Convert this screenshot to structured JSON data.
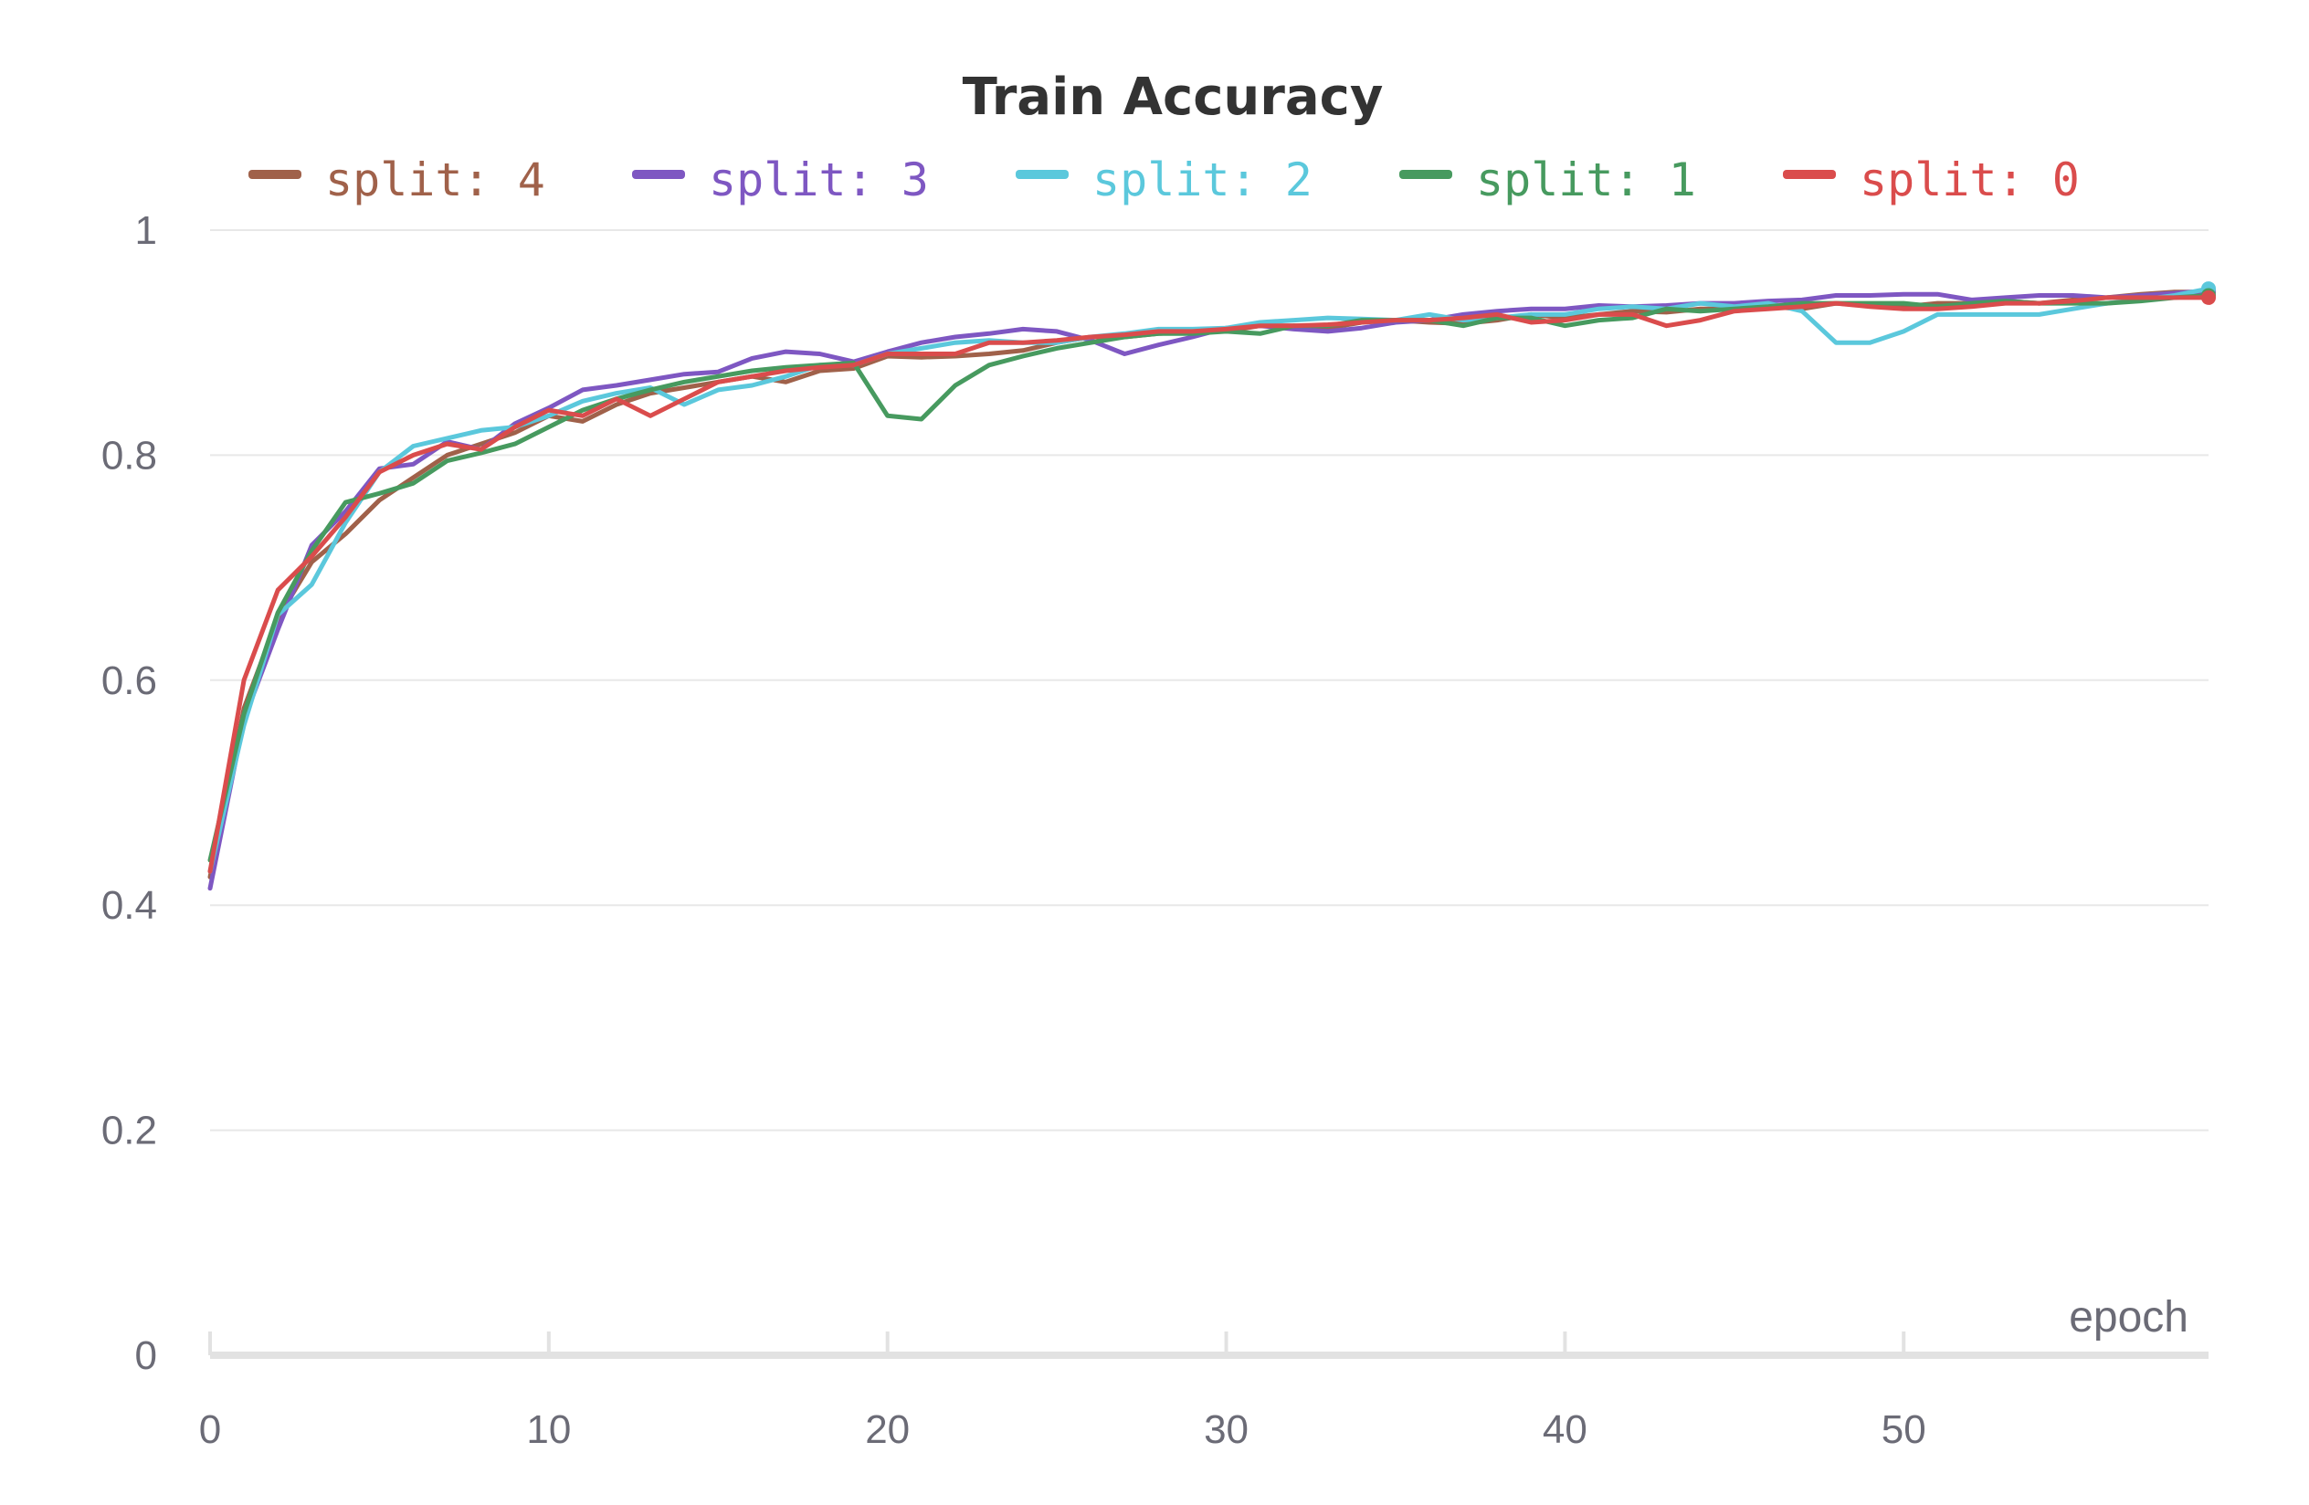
{
  "chart_data": {
    "type": "line",
    "title": "Train Accuracy",
    "xlabel": "epoch",
    "ylabel": "",
    "xlim": [
      0,
      59
    ],
    "ylim": [
      0,
      1
    ],
    "x_ticks": [
      "0",
      "10",
      "20",
      "30",
      "40",
      "50"
    ],
    "x_tick_values": [
      0,
      10,
      20,
      30,
      40,
      50
    ],
    "y_ticks": [
      "0",
      "0.2",
      "0.4",
      "0.6",
      "0.8",
      "1"
    ],
    "y_tick_values": [
      0,
      0.2,
      0.4,
      0.6,
      0.8,
      1
    ],
    "grid": true,
    "legend_position": "top",
    "series": [
      {
        "name": "split: 4",
        "color": "#a0614a",
        "x": [
          0,
          1,
          2,
          3,
          4,
          5,
          6,
          7,
          8,
          9,
          10,
          11,
          12,
          13,
          14,
          15,
          16,
          17,
          18,
          19,
          20,
          21,
          22,
          23,
          24,
          25,
          26,
          27,
          28,
          29,
          30,
          31,
          32,
          33,
          34,
          35,
          36,
          37,
          38,
          39,
          40,
          41,
          42,
          43,
          44,
          45,
          46,
          47,
          48,
          49,
          50,
          51,
          52,
          53,
          54,
          55,
          56,
          57,
          58,
          59
        ],
        "values": [
          0.425,
          0.575,
          0.655,
          0.705,
          0.73,
          0.76,
          0.78,
          0.8,
          0.81,
          0.82,
          0.835,
          0.83,
          0.845,
          0.855,
          0.86,
          0.865,
          0.87,
          0.865,
          0.875,
          0.877,
          0.888,
          0.887,
          0.888,
          0.89,
          0.893,
          0.9,
          0.905,
          0.905,
          0.908,
          0.91,
          0.91,
          0.915,
          0.915,
          0.913,
          0.918,
          0.92,
          0.918,
          0.917,
          0.92,
          0.925,
          0.922,
          0.925,
          0.928,
          0.927,
          0.93,
          0.93,
          0.932,
          0.93,
          0.935,
          0.933,
          0.932,
          0.935,
          0.935,
          0.937,
          0.935,
          0.938,
          0.94,
          0.943,
          0.945,
          0.945
        ]
      },
      {
        "name": "split: 3",
        "color": "#7e57c2",
        "x": [
          0,
          1,
          2,
          3,
          4,
          5,
          6,
          7,
          8,
          9,
          10,
          11,
          12,
          13,
          14,
          15,
          16,
          17,
          18,
          19,
          20,
          21,
          22,
          23,
          24,
          25,
          26,
          27,
          28,
          29,
          30,
          31,
          32,
          33,
          34,
          35,
          36,
          37,
          38,
          39,
          40,
          41,
          42,
          43,
          44,
          45,
          46,
          47,
          48,
          49,
          50,
          51,
          52,
          53,
          54,
          55,
          56,
          57,
          58,
          59
        ],
        "values": [
          0.415,
          0.565,
          0.645,
          0.72,
          0.75,
          0.788,
          0.792,
          0.812,
          0.805,
          0.828,
          0.842,
          0.858,
          0.862,
          0.867,
          0.872,
          0.874,
          0.886,
          0.892,
          0.89,
          0.883,
          0.892,
          0.9,
          0.905,
          0.908,
          0.912,
          0.91,
          0.902,
          0.89,
          0.898,
          0.905,
          0.913,
          0.915,
          0.912,
          0.91,
          0.913,
          0.918,
          0.92,
          0.925,
          0.928,
          0.93,
          0.93,
          0.933,
          0.932,
          0.933,
          0.935,
          0.935,
          0.937,
          0.938,
          0.942,
          0.942,
          0.943,
          0.943,
          0.938,
          0.94,
          0.942,
          0.942,
          0.94,
          0.942,
          0.944,
          0.946
        ]
      },
      {
        "name": "split: 2",
        "color": "#5bc8dc",
        "x": [
          0,
          1,
          2,
          3,
          4,
          5,
          6,
          7,
          8,
          9,
          10,
          11,
          12,
          13,
          14,
          15,
          16,
          17,
          18,
          19,
          20,
          21,
          22,
          23,
          24,
          25,
          26,
          27,
          28,
          29,
          30,
          31,
          32,
          33,
          34,
          35,
          36,
          37,
          38,
          39,
          40,
          41,
          42,
          43,
          44,
          45,
          46,
          47,
          48,
          49,
          50,
          51,
          52,
          53,
          54,
          55,
          56,
          57,
          58,
          59
        ],
        "values": [
          0.43,
          0.56,
          0.658,
          0.685,
          0.74,
          0.785,
          0.808,
          0.815,
          0.822,
          0.825,
          0.835,
          0.848,
          0.855,
          0.86,
          0.845,
          0.858,
          0.862,
          0.87,
          0.88,
          0.88,
          0.89,
          0.895,
          0.9,
          0.902,
          0.9,
          0.9,
          0.905,
          0.908,
          0.912,
          0.912,
          0.913,
          0.918,
          0.92,
          0.922,
          0.921,
          0.92,
          0.925,
          0.92,
          0.922,
          0.925,
          0.925,
          0.93,
          0.932,
          0.93,
          0.935,
          0.932,
          0.935,
          0.928,
          0.9,
          0.9,
          0.91,
          0.925,
          0.925,
          0.925,
          0.925,
          0.93,
          0.935,
          0.938,
          0.942,
          0.948
        ]
      },
      {
        "name": "split: 1",
        "color": "#479a5f",
        "x": [
          0,
          1,
          2,
          3,
          4,
          5,
          6,
          7,
          8,
          9,
          10,
          11,
          12,
          13,
          14,
          15,
          16,
          17,
          18,
          19,
          20,
          21,
          22,
          23,
          24,
          25,
          26,
          27,
          28,
          29,
          30,
          31,
          32,
          33,
          34,
          35,
          36,
          37,
          38,
          39,
          40,
          41,
          42,
          43,
          44,
          45,
          46,
          47,
          48,
          49,
          50,
          51,
          52,
          53,
          54,
          55,
          56,
          57,
          58,
          59
        ],
        "values": [
          0.44,
          0.57,
          0.66,
          0.715,
          0.758,
          0.766,
          0.775,
          0.795,
          0.802,
          0.81,
          0.825,
          0.84,
          0.85,
          0.858,
          0.865,
          0.87,
          0.875,
          0.878,
          0.88,
          0.882,
          0.835,
          0.832,
          0.862,
          0.88,
          0.888,
          0.895,
          0.9,
          0.905,
          0.908,
          0.908,
          0.91,
          0.908,
          0.915,
          0.915,
          0.92,
          0.92,
          0.92,
          0.915,
          0.922,
          0.922,
          0.915,
          0.92,
          0.922,
          0.93,
          0.928,
          0.93,
          0.932,
          0.935,
          0.935,
          0.935,
          0.935,
          0.932,
          0.935,
          0.937,
          0.935,
          0.935,
          0.935,
          0.937,
          0.94,
          0.942
        ]
      },
      {
        "name": "split: 0",
        "color": "#da4c4c",
        "x": [
          0,
          1,
          2,
          3,
          4,
          5,
          6,
          7,
          8,
          9,
          10,
          11,
          12,
          13,
          14,
          15,
          16,
          17,
          18,
          19,
          20,
          21,
          22,
          23,
          24,
          25,
          26,
          27,
          28,
          29,
          30,
          31,
          32,
          33,
          34,
          35,
          36,
          37,
          38,
          39,
          40,
          41,
          42,
          43,
          44,
          45,
          46,
          47,
          48,
          49,
          50,
          51,
          52,
          53,
          54,
          55,
          56,
          57,
          58,
          59
        ],
        "values": [
          0.43,
          0.6,
          0.68,
          0.71,
          0.745,
          0.785,
          0.8,
          0.81,
          0.805,
          0.825,
          0.84,
          0.835,
          0.85,
          0.835,
          0.85,
          0.865,
          0.87,
          0.875,
          0.878,
          0.88,
          0.89,
          0.89,
          0.89,
          0.9,
          0.9,
          0.902,
          0.905,
          0.907,
          0.91,
          0.91,
          0.912,
          0.915,
          0.915,
          0.916,
          0.918,
          0.92,
          0.92,
          0.922,
          0.925,
          0.918,
          0.92,
          0.925,
          0.925,
          0.915,
          0.92,
          0.928,
          0.93,
          0.932,
          0.935,
          0.932,
          0.93,
          0.93,
          0.932,
          0.935,
          0.935,
          0.937,
          0.94,
          0.94,
          0.94,
          0.94
        ]
      }
    ]
  }
}
